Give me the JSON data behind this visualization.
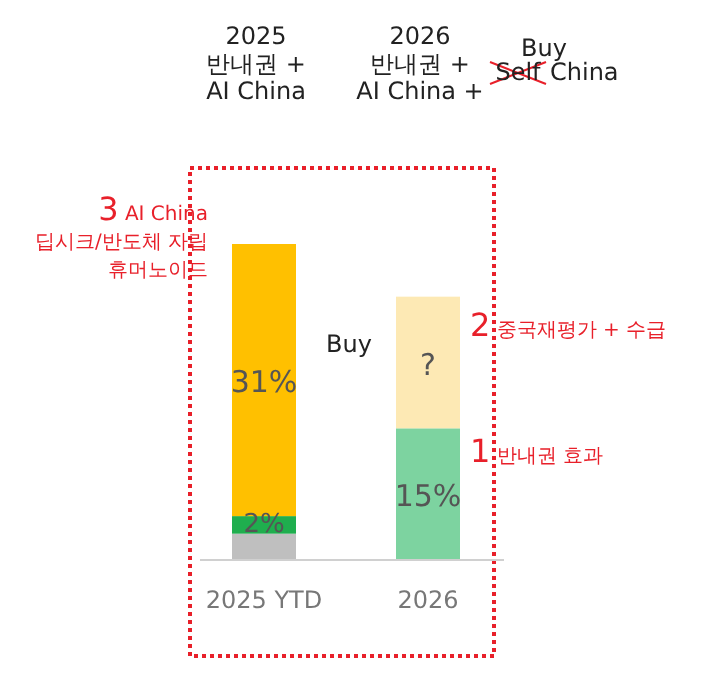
{
  "chart_data": {
    "type": "bar",
    "stacked": true,
    "categories": [
      "2025 YTD",
      "2026"
    ],
    "series": [
      {
        "color": "#bfbfbf",
        "values": [
          3,
          null
        ]
      },
      {
        "colors": [
          "#1fae4e",
          "#7dd3a0"
        ],
        "values": [
          2,
          15
        ],
        "value_labels": [
          "2%",
          "15%"
        ]
      },
      {
        "color": "#ffc000",
        "values": [
          31,
          null
        ],
        "value_labels": [
          "31%",
          null
        ]
      },
      {
        "color": "#fde9b4",
        "values": [
          null,
          15
        ],
        "value_labels": [
          null,
          "?"
        ]
      }
    ],
    "annotations": [
      "2025\n반내권 +\nAI China",
      "2026\n반내권 +\nAI China +",
      "Buy",
      "Self",
      "China",
      "Buy",
      "3 AI China\n딥시크/반도체 자립\n휴머노이드",
      "2 중국재평가 + 수급",
      "1 반내권 효과"
    ]
  }
}
